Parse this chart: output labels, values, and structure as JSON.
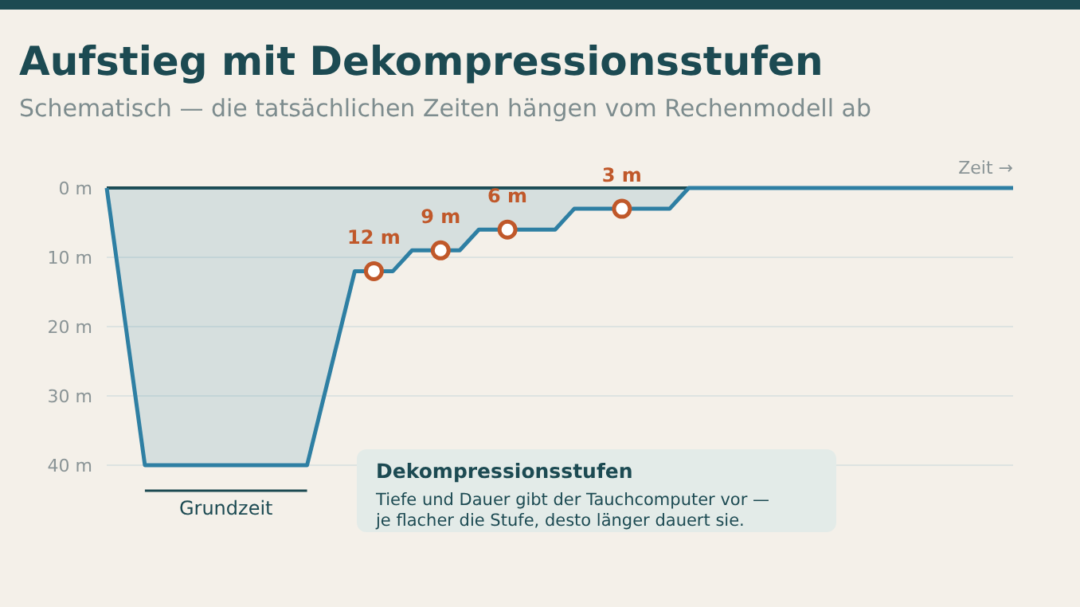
{
  "chart_data": {
    "type": "area",
    "title": "Aufstieg mit Dekompressionsstufen",
    "subtitle": "Schematisch — die tatsächlichen Zeiten hängen vom Rechenmodell ab",
    "xlabel": "Zeit →",
    "categories": [
      null,
      null,
      null,
      null,
      null,
      null,
      null,
      null,
      null,
      null,
      null,
      null,
      null,
      null,
      null,
      null,
      null,
      null,
      null,
      null,
      null,
      null,
      null,
      null,
      null,
      null,
      null,
      null,
      null,
      null,
      null,
      null,
      null,
      null,
      null,
      null,
      null,
      null,
      null,
      null,
      null,
      null,
      null,
      null,
      null,
      null,
      null,
      null,
      null,
      null,
      null,
      null,
      null,
      null,
      null,
      null,
      null,
      null,
      null,
      null,
      null,
      null,
      null,
      null,
      null,
      null,
      null,
      null,
      null,
      null,
      null,
      null,
      null,
      null,
      null,
      null,
      null,
      null,
      null,
      null,
      null,
      null,
      null,
      null,
      null,
      null,
      null,
      null,
      null,
      null,
      null,
      null,
      null,
      null,
      null,
      null
    ],
    "series": [
      {
        "color": "#2e7fa3",
        "values": [
          0,
          10,
          20,
          30,
          40,
          40,
          40,
          40,
          40,
          40,
          40,
          40,
          40,
          40,
          40,
          40,
          40,
          40,
          40,
          40,
          40,
          40,
          34.4,
          28.8,
          23.2,
          17.6,
          12,
          12,
          12,
          12,
          12,
          10.5,
          9,
          9,
          9,
          9,
          9,
          9,
          7.5,
          6,
          6,
          6,
          6,
          6,
          6,
          6,
          6,
          6,
          4.5,
          3,
          3,
          3,
          3,
          3,
          3,
          3,
          3,
          3,
          3,
          3,
          1.5,
          0,
          0,
          0,
          0,
          0,
          0,
          0,
          0,
          0,
          0,
          0,
          0,
          0,
          0,
          0,
          0,
          0,
          0,
          0,
          0,
          0,
          0,
          0,
          0,
          0,
          0,
          0,
          0,
          0,
          0,
          0,
          0,
          0,
          0,
          0
        ]
      },
      {
        "type": "scatter",
        "color": "#c0582a",
        "marker": "circle",
        "values": [
          null,
          null,
          null,
          null,
          null,
          null,
          null,
          null,
          null,
          null,
          null,
          null,
          null,
          null,
          null,
          null,
          null,
          null,
          null,
          null,
          null,
          null,
          null,
          null,
          null,
          null,
          null,
          null,
          12,
          null,
          null,
          null,
          null,
          null,
          null,
          9,
          null,
          null,
          null,
          null,
          null,
          null,
          6,
          null,
          null,
          null,
          null,
          null,
          null,
          null,
          null,
          null,
          null,
          null,
          3,
          null,
          null,
          null,
          null,
          null,
          null,
          null,
          null,
          null,
          null,
          null,
          null,
          null,
          null,
          null,
          null,
          null,
          null,
          null,
          null,
          null,
          null,
          null,
          null,
          null,
          null,
          null,
          null,
          null,
          null,
          null,
          null,
          null,
          null,
          null,
          null,
          null,
          null,
          null,
          null,
          null
        ],
        "value_labels": [
          null,
          null,
          null,
          null,
          null,
          null,
          null,
          null,
          null,
          null,
          null,
          null,
          null,
          null,
          null,
          null,
          null,
          null,
          null,
          null,
          null,
          null,
          null,
          null,
          null,
          null,
          null,
          null,
          "12 m",
          null,
          null,
          null,
          null,
          null,
          null,
          "9 m",
          null,
          null,
          null,
          null,
          null,
          null,
          "6 m",
          null,
          null,
          null,
          null,
          null,
          null,
          null,
          null,
          null,
          null,
          null,
          "3 m",
          null,
          null,
          null,
          null,
          null,
          null,
          null,
          null,
          null,
          null,
          null,
          null,
          null,
          null,
          null,
          null,
          null,
          null,
          null,
          null,
          null,
          null,
          null,
          null,
          null,
          null,
          null,
          null,
          null,
          null,
          null,
          null,
          null,
          null,
          null,
          null,
          null,
          null,
          null,
          null,
          null
        ]
      }
    ],
    "ylim": [
      40,
      0
    ],
    "yticks": [
      {
        "value": 0,
        "label": "0 m"
      },
      {
        "value": 10,
        "label": "10 m"
      },
      {
        "value": 20,
        "label": "20 m"
      },
      {
        "value": 30,
        "label": "30 m"
      },
      {
        "value": 40,
        "label": "40 m"
      }
    ],
    "grid": "y",
    "annotations": [
      "Grundzeit",
      "Dekompressionsstufen",
      "Tiefe und Dauer gibt der Tauchcomputer vor —",
      "je flacher die Stufe, desto länger dauert sie."
    ]
  }
}
